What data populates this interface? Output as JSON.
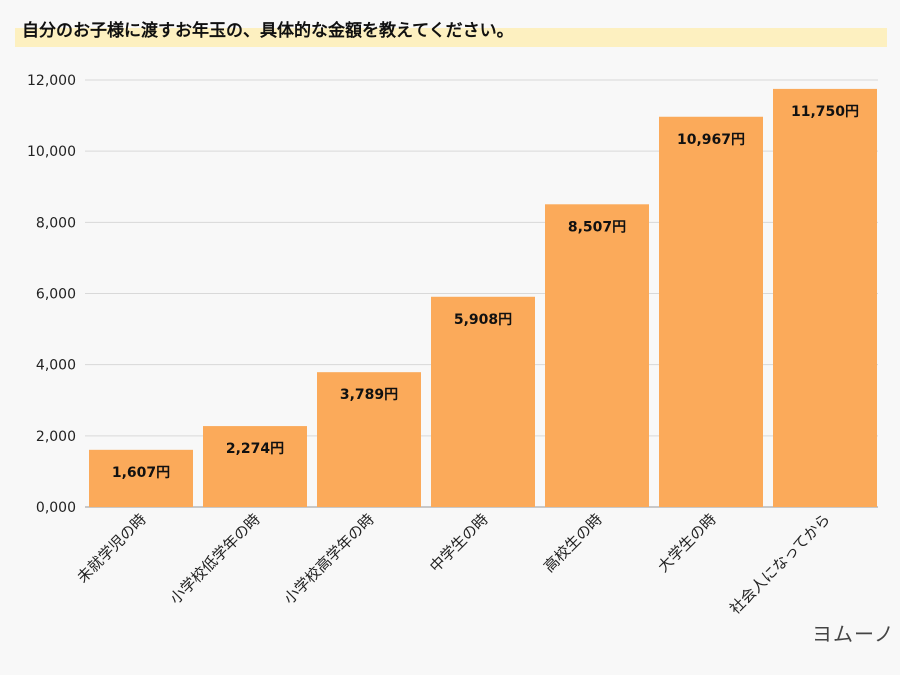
{
  "title": "自分のお子様に渡すお年玉の、具体的な金額を教えてください。",
  "logo": "ヨムーノ",
  "colors": {
    "bar": "#fbaa5a",
    "title_highlight": "#fdf0c0",
    "grid": "#d9d9d9"
  },
  "chart_data": {
    "type": "bar",
    "title": "自分のお子様に渡すお年玉の、具体的な金額を教えてください。",
    "categories": [
      "未就学児の時",
      "小学校低学年の時",
      "小学校高学年の時",
      "中学生の時",
      "高校生の時",
      "大学生の時",
      "社会人になってから"
    ],
    "values": [
      1607,
      2274,
      3789,
      5908,
      8507,
      10967,
      11750
    ],
    "data_labels": [
      "1,607円",
      "2,274円",
      "3,789円",
      "5,908円",
      "8,507円",
      "10,967円",
      "11,750円"
    ],
    "yticks": [
      "0,000",
      "2,000",
      "4,000",
      "6,000",
      "8,000",
      "10,000",
      "12,000"
    ],
    "ylim": [
      0,
      12000
    ],
    "grid": true
  }
}
